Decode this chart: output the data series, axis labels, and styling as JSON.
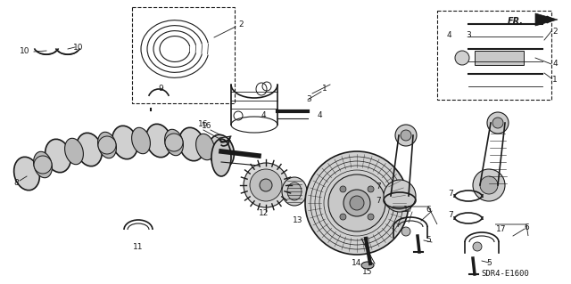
{
  "bg_color": "#ffffff",
  "fig_width": 6.4,
  "fig_height": 3.19,
  "dpi": 100,
  "subtitle_code": "SDR4-E1600",
  "fr_label": "FR.",
  "line_color": "#1a1a1a",
  "fill_color": "#e8e8e8",
  "dark_fill": "#555555"
}
